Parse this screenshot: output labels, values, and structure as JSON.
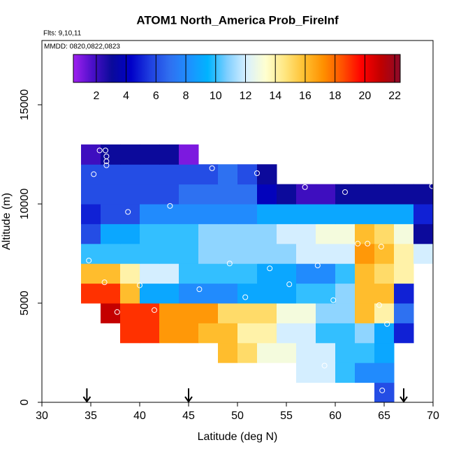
{
  "chart_data": {
    "type": "heatmap",
    "title": "ATOM1 North_America Prob_FireInf",
    "subtitle": "Flts: 9,10,11",
    "annotation": "MMDD: 0820,0822,0823",
    "x_label": "Latitude (deg N)",
    "y_label": "Altitude (m)",
    "xlim": [
      30,
      70
    ],
    "ylim": [
      0,
      18240
    ],
    "xticks": [
      30,
      35,
      40,
      45,
      50,
      55,
      60,
      65,
      70
    ],
    "yticks": [
      0,
      5000,
      10000,
      15000
    ],
    "x_bins": [
      34,
      36,
      38,
      40,
      42,
      44,
      46,
      48,
      50,
      52,
      54,
      56,
      58,
      60,
      62,
      64,
      66,
      68,
      70
    ],
    "y_bins": [
      0,
      1000,
      2000,
      3000,
      4000,
      5000,
      6000,
      7000,
      8000,
      9000,
      10000,
      11000,
      12000,
      13000
    ],
    "z": [
      [
        null,
        null,
        null,
        null,
        null,
        null,
        null,
        null,
        null,
        null,
        null,
        null,
        null,
        null,
        null,
        6,
        null,
        null
      ],
      [
        null,
        null,
        null,
        null,
        null,
        null,
        null,
        null,
        null,
        null,
        null,
        12,
        12,
        10,
        8,
        8,
        null,
        null
      ],
      [
        null,
        null,
        null,
        null,
        null,
        null,
        null,
        16,
        15,
        13,
        13,
        12,
        12,
        10,
        10,
        9,
        null,
        null
      ],
      [
        null,
        null,
        19,
        19,
        17,
        17,
        16,
        16,
        14,
        14,
        12,
        12,
        10,
        10,
        11,
        9,
        5,
        null
      ],
      [
        null,
        21,
        19,
        19,
        17,
        17,
        17,
        15,
        15,
        15,
        13,
        13,
        11,
        11,
        16,
        14,
        7,
        null
      ],
      [
        19,
        19,
        16,
        9,
        9,
        8,
        8,
        8,
        9,
        9,
        9,
        10,
        10,
        11,
        16,
        16,
        5,
        null
      ],
      [
        16,
        16,
        14,
        12,
        12,
        10,
        10,
        10,
        10,
        9,
        9,
        8,
        8,
        10,
        16,
        15,
        14,
        null
      ],
      [
        10,
        10,
        10,
        10,
        10,
        10,
        11,
        11,
        11,
        11,
        11,
        12,
        12,
        12,
        17,
        16,
        14,
        12
      ],
      [
        6,
        9,
        9,
        10,
        10,
        10,
        11,
        11,
        11,
        11,
        12,
        12,
        13,
        13,
        16,
        15,
        13,
        3
      ],
      [
        5,
        6,
        6,
        8,
        8,
        8,
        8,
        8,
        8,
        9,
        9,
        9,
        9,
        9,
        9,
        9,
        9,
        5
      ],
      [
        6,
        6,
        6,
        6,
        6,
        7,
        7,
        7,
        7,
        4,
        3,
        2,
        2,
        3,
        3,
        3,
        3,
        3
      ],
      [
        6,
        6,
        6,
        6,
        6,
        6,
        6,
        7,
        6,
        3,
        null,
        null,
        null,
        null,
        null,
        null,
        null,
        null
      ],
      [
        2,
        3,
        3,
        3,
        3,
        1,
        null,
        null,
        null,
        null,
        null,
        null,
        null,
        null,
        null,
        null,
        null,
        null
      ]
    ],
    "clim": [
      0.46,
      22.37
    ],
    "cticks": [
      2,
      4,
      6,
      8,
      10,
      12,
      14,
      16,
      18,
      20,
      22
    ],
    "colorscale": [
      "#a020f0",
      "#4b0fc8",
      "#0a0a9a",
      "#0000c8",
      "#1f3fe0",
      "#2f6ff0",
      "#1e90ff",
      "#00b4ff",
      "#7fcfff",
      "#d8f0ff",
      "#ffffd0",
      "#ffe680",
      "#ffc030",
      "#ff9000",
      "#ff5000",
      "#ff0000",
      "#c00000",
      "#8b0a2a"
    ],
    "points": {
      "x": [
        35.3,
        35.9,
        36.5,
        36.6,
        36.6,
        36.6,
        38.8,
        43.1,
        47.4,
        52.0,
        56.9,
        61.0,
        69.9,
        64.7,
        63.3,
        62.3,
        34.8,
        49.2,
        53.3,
        58.2,
        36.4,
        40.0,
        46.1,
        55.3,
        50.8,
        59.8,
        64.5,
        37.7,
        41.5,
        65.3,
        58.9,
        64.8
      ],
      "y": [
        11500,
        12700,
        12700,
        12400,
        12150,
        11950,
        9600,
        9900,
        11800,
        11550,
        10850,
        10600,
        10900,
        7850,
        8000,
        8000,
        7150,
        7000,
        6750,
        6900,
        6050,
        5900,
        5700,
        5950,
        5300,
        5150,
        4900,
        4550,
        4650,
        3950,
        1850,
        600
      ],
      "color": "#ffffff"
    },
    "arrows_x": [
      34.6,
      45,
      67
    ]
  }
}
